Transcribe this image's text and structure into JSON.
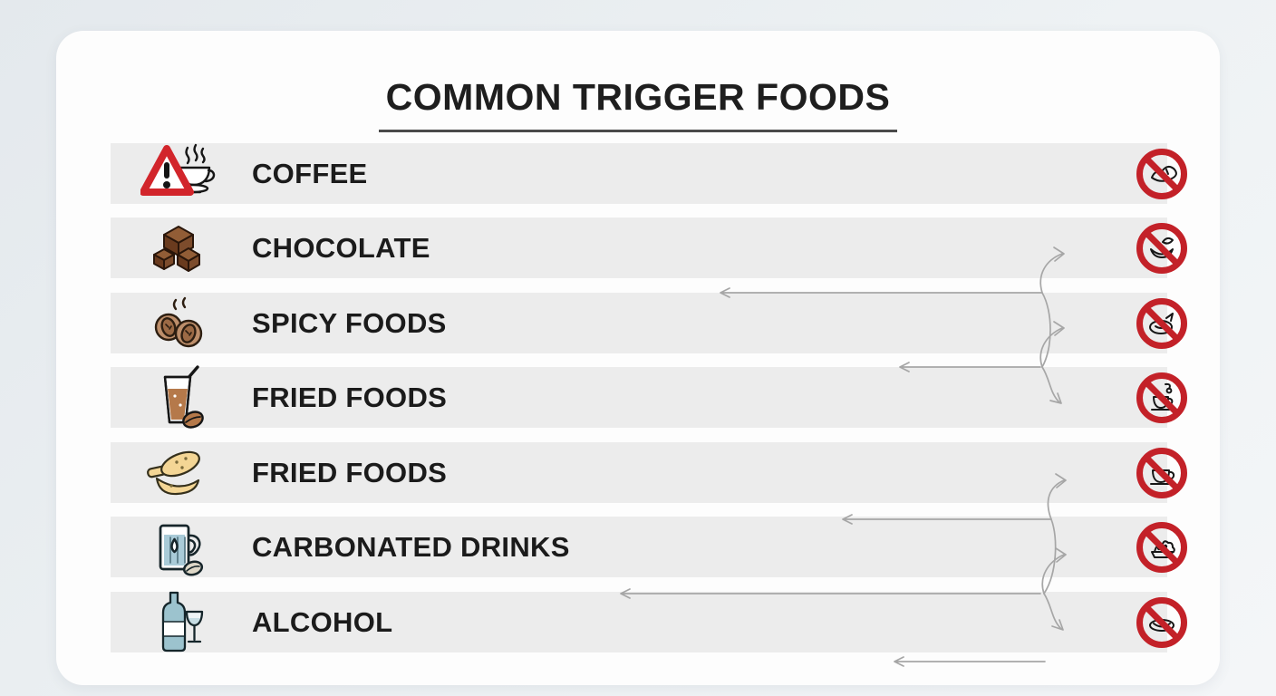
{
  "header": {
    "title": "COMMON TRIGGER FOODS"
  },
  "colors": {
    "page_background": "#e9edf0",
    "card_background": "#fdfdfd",
    "row_background": "#ececec",
    "text": "#1b1b1b",
    "prohibit_red": "#c32128",
    "warning_red": "#d2252b",
    "arrow_gray": "#a6a6a6"
  },
  "rows": [
    {
      "label": "COFFEE",
      "icon": "warning-coffee-icon",
      "no_icon": "no-pastry-icon"
    },
    {
      "label": "CHOCOLATE",
      "icon": "chocolate-icon",
      "no_icon": "no-bowl-icon"
    },
    {
      "label": "SPICY FOODS",
      "icon": "spicy-pods-icon",
      "no_icon": "no-dumpling-icon"
    },
    {
      "label": "FRIED FOODS",
      "icon": "iced-drink-icon",
      "no_icon": "no-teacup-cherry-icon"
    },
    {
      "label": "FRIED FOODS",
      "icon": "fried-foods-icon",
      "no_icon": "no-teacup-icon"
    },
    {
      "label": "CARBONATED DRINKS",
      "icon": "carbonated-mug-icon",
      "no_icon": "no-cake-icon"
    },
    {
      "label": "ALCOHOL",
      "icon": "alcohol-bottle-icon",
      "no_icon": "no-dish-icon"
    }
  ]
}
